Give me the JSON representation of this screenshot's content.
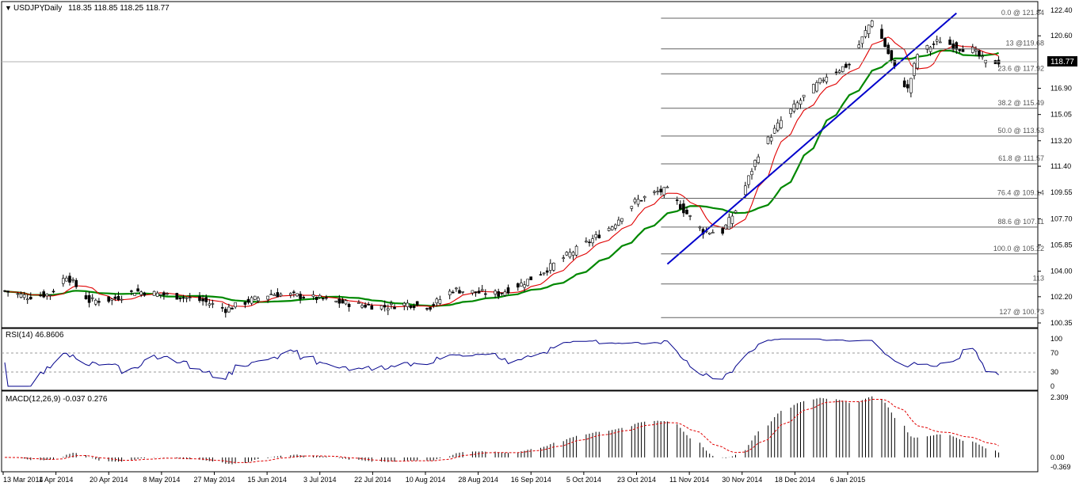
{
  "header": {
    "symbol": "USDJPY",
    "timeframe": "Daily",
    "ohlc": "118.35 118.85 118.25 118.77"
  },
  "price_panel": {
    "ymin": 100.35,
    "ymax": 122.4,
    "ticks": [
      "122.40",
      "120.60",
      "118.77",
      "116.90",
      "115.05",
      "113.20",
      "111.40",
      "109.55",
      "107.70",
      "105.85",
      "104.00",
      "102.20",
      "100.35"
    ],
    "current_price": "118.77",
    "fib_levels": [
      {
        "label": "0.0 @ 121.84",
        "value": 121.84
      },
      {
        "label": "13 @119.68",
        "value": 119.68
      },
      {
        "label": "23.6 @ 117.92",
        "value": 117.92
      },
      {
        "label": "38.2 @ 115.49",
        "value": 115.49
      },
      {
        "label": "50.0 @ 113.53",
        "value": 113.53
      },
      {
        "label": "61.8 @ 111.57",
        "value": 111.57
      },
      {
        "label": "76.4 @ 109.14",
        "value": 109.14
      },
      {
        "label": "88.6 @ 107.11",
        "value": 107.11
      },
      {
        "label": "100.0 @ 105.22",
        "value": 105.22
      },
      {
        "label": "113",
        "value": 103.1
      },
      {
        "label": "127 @ 100.73",
        "value": 100.73
      }
    ]
  },
  "rsi_panel": {
    "label": "RSI(14) 46.8606",
    "ticks": [
      "100",
      "70",
      "30",
      "0"
    ],
    "levels": [
      70,
      30
    ]
  },
  "macd_panel": {
    "label": "MACD(12,26,9) -0.037 0.276",
    "ticks": [
      "2.309",
      "0.00",
      "-0.369"
    ]
  },
  "x_axis": {
    "labels": [
      "13 Mar 2014",
      "1 Apr 2014",
      "20 Apr 2014",
      "8 May 2014",
      "27 May 2014",
      "15 Jun 2014",
      "3 Jul 2014",
      "22 Jul 2014",
      "10 Aug 2014",
      "28 Aug 2014",
      "16 Sep 2014",
      "5 Oct 2014",
      "23 Oct 2014",
      "11 Nov 2014",
      "30 Nov 2014",
      "18 Dec 2014",
      "6 Jan 2015"
    ]
  },
  "chart_data": {
    "type": "line",
    "title": "USDJPY,Daily",
    "xlabel": "",
    "ylabel": "",
    "series": [
      {
        "points": [
          [
            "2014-03-13",
            102.6
          ],
          [
            "2014-03-20",
            102.2
          ],
          [
            "2014-03-27",
            102.4
          ],
          [
            "2014-04-01",
            103.7
          ],
          [
            "2014-04-08",
            101.9
          ],
          [
            "2014-04-15",
            102.0
          ],
          [
            "2014-04-22",
            102.6
          ],
          [
            "2014-04-29",
            102.4
          ],
          [
            "2014-05-06",
            102.2
          ],
          [
            "2014-05-13",
            101.9
          ],
          [
            "2014-05-20",
            101.3
          ],
          [
            "2014-05-27",
            101.9
          ],
          [
            "2014-06-03",
            102.4
          ],
          [
            "2014-06-10",
            102.3
          ],
          [
            "2014-06-17",
            102.1
          ],
          [
            "2014-06-24",
            101.8
          ],
          [
            "2014-07-01",
            101.6
          ],
          [
            "2014-07-08",
            101.5
          ],
          [
            "2014-07-15",
            101.7
          ],
          [
            "2014-07-22",
            101.5
          ],
          [
            "2014-07-29",
            102.7
          ],
          [
            "2014-08-05",
            102.5
          ],
          [
            "2014-08-12",
            102.4
          ],
          [
            "2014-08-19",
            103.1
          ],
          [
            "2014-08-26",
            104.0
          ],
          [
            "2014-09-02",
            105.1
          ],
          [
            "2014-09-09",
            106.1
          ],
          [
            "2014-09-16",
            107.2
          ],
          [
            "2014-09-23",
            108.9
          ],
          [
            "2014-09-30",
            109.6
          ],
          [
            "2014-10-03",
            109.7
          ],
          [
            "2014-10-08",
            108.3
          ],
          [
            "2014-10-14",
            106.8
          ],
          [
            "2014-10-20",
            106.8
          ],
          [
            "2014-10-24",
            108.3
          ],
          [
            "2014-10-31",
            112.3
          ],
          [
            "2014-11-07",
            114.6
          ],
          [
            "2014-11-14",
            116.3
          ],
          [
            "2014-11-21",
            117.8
          ],
          [
            "2014-11-28",
            118.6
          ],
          [
            "2014-12-05",
            121.8
          ],
          [
            "2014-12-08",
            120.4
          ],
          [
            "2014-12-12",
            118.3
          ],
          [
            "2014-12-16",
            116.8
          ],
          [
            "2014-12-19",
            119.3
          ],
          [
            "2014-12-26",
            120.3
          ],
          [
            "2014-12-31",
            119.8
          ],
          [
            "2015-01-05",
            119.6
          ],
          [
            "2015-01-09",
            118.7
          ],
          [
            "2015-01-13",
            118.77
          ]
        ]
      }
    ],
    "ylim": [
      100.35,
      122.4
    ],
    "trendline": {
      "from": [
        "2014-10-03",
        104.5
      ],
      "to": [
        "2014-12-31",
        122.2
      ]
    }
  }
}
